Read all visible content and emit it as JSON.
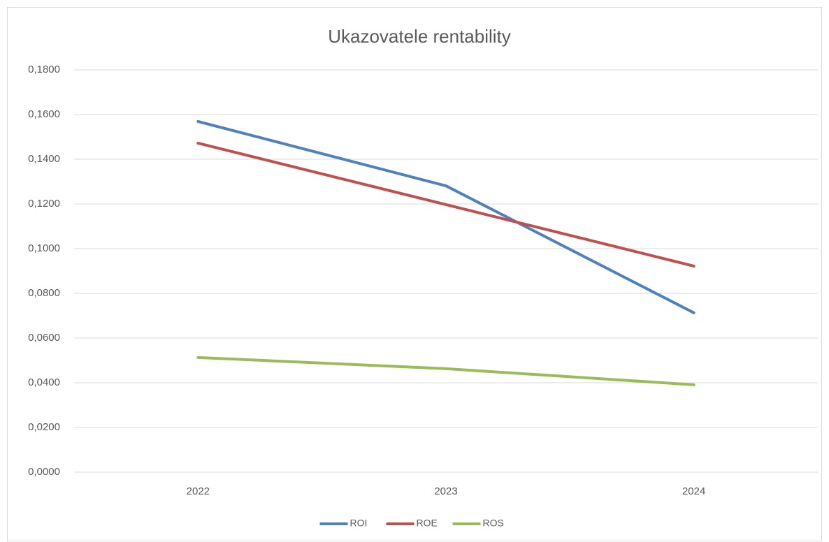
{
  "chart_data": {
    "type": "line",
    "title": "Ukazovatele rentability",
    "categories": [
      "2022",
      "2023",
      "2024"
    ],
    "series": [
      {
        "name": "ROI",
        "color": "#4f81bd",
        "values": [
          0.1569,
          0.1281,
          0.0713
        ]
      },
      {
        "name": "ROE",
        "color": "#c0504d",
        "values": [
          0.1472,
          0.1197,
          0.0922
        ]
      },
      {
        "name": "ROS",
        "color": "#9bbb59",
        "values": [
          0.0513,
          0.0463,
          0.0391
        ]
      }
    ],
    "ylim": [
      0,
      0.18
    ],
    "yticks": [
      {
        "value": 0,
        "label": "0,0000"
      },
      {
        "value": 0.02,
        "label": "0,0200"
      },
      {
        "value": 0.04,
        "label": "0,0400"
      },
      {
        "value": 0.06,
        "label": "0,0600"
      },
      {
        "value": 0.08,
        "label": "0,0800"
      },
      {
        "value": 0.1,
        "label": "0,1000"
      },
      {
        "value": 0.12,
        "label": "0,1200"
      },
      {
        "value": 0.14,
        "label": "0,1400"
      },
      {
        "value": 0.16,
        "label": "0,1600"
      },
      {
        "value": 0.18,
        "label": "0,1800"
      }
    ],
    "grid": true,
    "legend": "bottom"
  }
}
